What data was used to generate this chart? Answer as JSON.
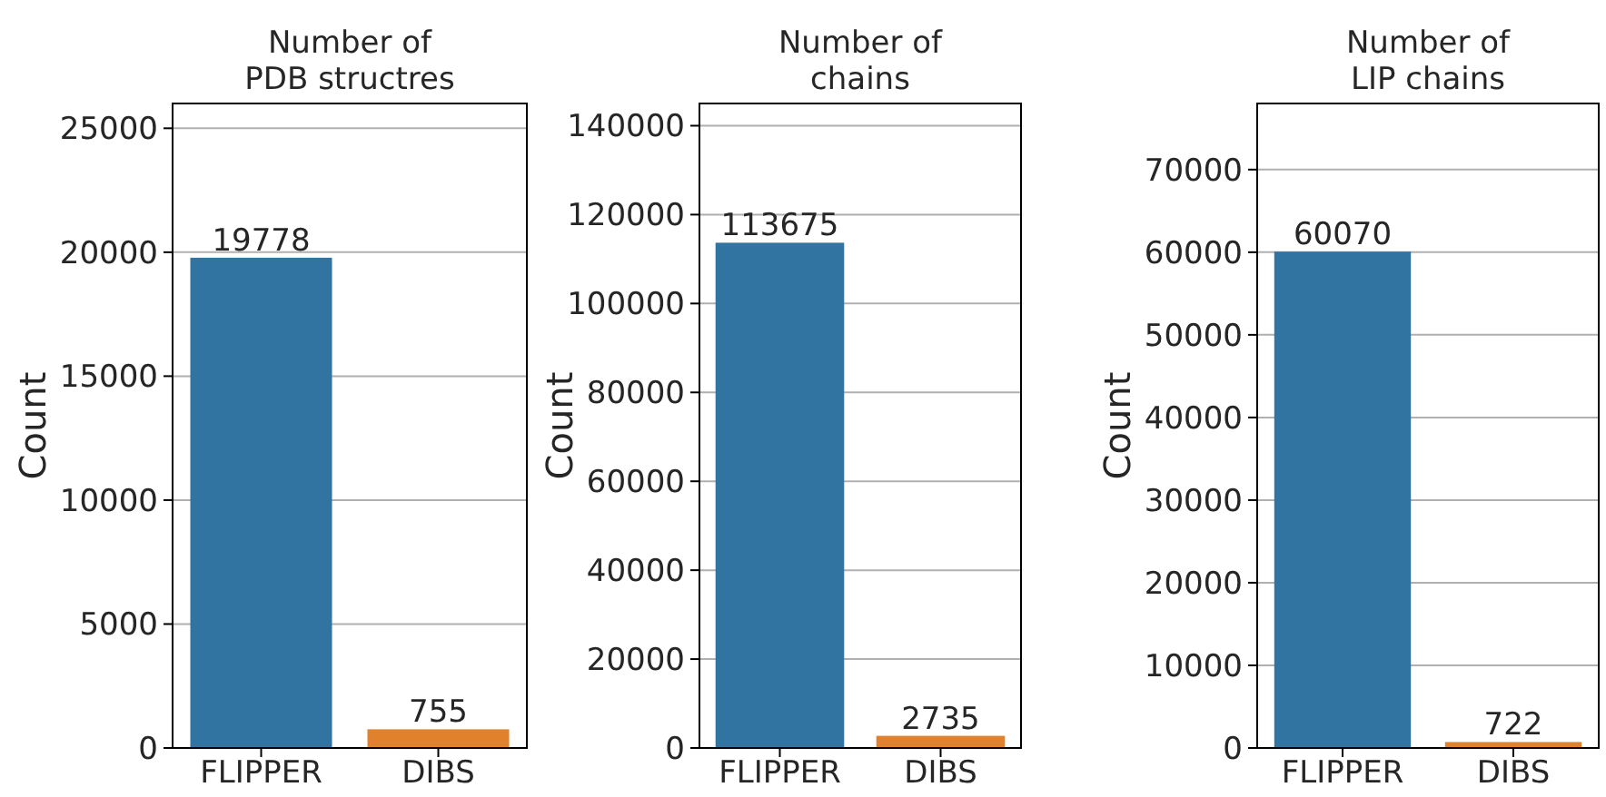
{
  "chart_data": [
    {
      "type": "bar",
      "title": "Number of\nPDB structres",
      "ylabel": "Count",
      "categories": [
        "FLIPPER",
        "DIBS"
      ],
      "values": [
        19778,
        755
      ],
      "colors": [
        "#3274a1",
        "#e1812c"
      ],
      "ylim": [
        0,
        26000
      ],
      "yticks": [
        0,
        5000,
        10000,
        15000,
        20000,
        25000
      ],
      "grid": "y",
      "data_labels": true
    },
    {
      "type": "bar",
      "title": "Number of\nchains",
      "ylabel": "Count",
      "categories": [
        "FLIPPER",
        "DIBS"
      ],
      "values": [
        113675,
        2735
      ],
      "colors": [
        "#3274a1",
        "#e1812c"
      ],
      "ylim": [
        0,
        145000
      ],
      "yticks": [
        0,
        20000,
        40000,
        60000,
        80000,
        100000,
        120000,
        140000
      ],
      "grid": "y",
      "data_labels": true
    },
    {
      "type": "bar",
      "title": "Number of\nLIP chains",
      "ylabel": "Count",
      "categories": [
        "FLIPPER",
        "DIBS"
      ],
      "values": [
        60070,
        722
      ],
      "colors": [
        "#3274a1",
        "#e1812c"
      ],
      "ylim": [
        0,
        78000
      ],
      "yticks": [
        0,
        10000,
        20000,
        30000,
        40000,
        50000,
        60000,
        70000
      ],
      "grid": "y",
      "data_labels": true
    }
  ]
}
